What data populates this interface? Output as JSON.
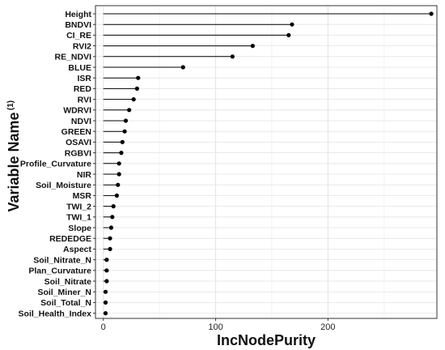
{
  "chart_data": {
    "type": "lollipop",
    "title": "",
    "xlabel": "IncNodePurity",
    "ylabel": "Variable Name",
    "ylabel_superscript": "(1)",
    "xlim": [
      -7,
      297
    ],
    "xticks": [
      0,
      100,
      200
    ],
    "grid": true,
    "categories": [
      "Height",
      "BNDVI",
      "CI_RE",
      "RVI2",
      "RE_NDVI",
      "BLUE",
      "ISR",
      "RED",
      "RVI",
      "WDRVI",
      "NDVI",
      "GREEN",
      "OSAVI",
      "RGBVI",
      "Profile_Curvature",
      "NIR",
      "Soil_Moisture",
      "MSR",
      "TWI_2",
      "TWI_1",
      "Slope",
      "REDEDGE",
      "Aspect",
      "Soil_Nitrate_N",
      "Plan_Curvature",
      "Soil_Nitrate",
      "Soil_Miner_N",
      "Soil_Total_N",
      "Soil_Health_Index"
    ],
    "values": [
      292,
      168,
      165,
      133,
      115,
      71,
      31,
      30,
      27,
      23,
      20,
      19,
      17,
      16,
      14,
      14,
      13,
      12,
      9,
      8,
      7,
      6,
      6,
      3,
      3,
      3,
      2,
      2,
      2
    ],
    "colors": {
      "line": "#000000",
      "point": "#000000",
      "grid_major": "#e3e3e3",
      "grid_minor": "#f0f0f0",
      "panel_border": "#333333"
    }
  }
}
